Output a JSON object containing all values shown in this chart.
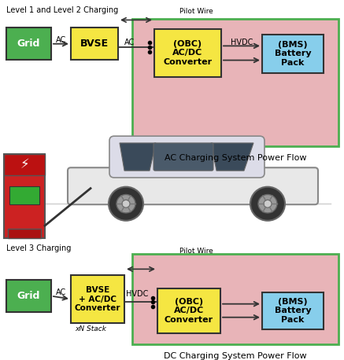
{
  "fig_bg": "#ffffff",
  "top_label": "Level 1 and Level 2 Charging",
  "bot_label": "Level 3 Charging",
  "panel_bg": "#e8b4b8",
  "panel_border": "#4caf50",
  "grid_color": "#4caf50",
  "grid_text": "Grid",
  "bvse_color": "#f5e642",
  "bvse_text": "BVSE",
  "bvse_bot_text": "BVSE\n+ AC/DC\nConverter",
  "obc_color": "#f5e642",
  "obc_text": "(OBC)\nAC/DC\nConverter",
  "bms_color": "#87ceeb",
  "bms_text": "(BMS)\nBattery\nPack",
  "pilot_wire_label": "Pilot Wire",
  "ac_label": "AC",
  "hvdc_label": "HVDC",
  "xN_label": "xN Stack",
  "ac_charging_label": "AC Charging System Power Flow",
  "dc_charging_label": "DC Charging System Power Flow"
}
